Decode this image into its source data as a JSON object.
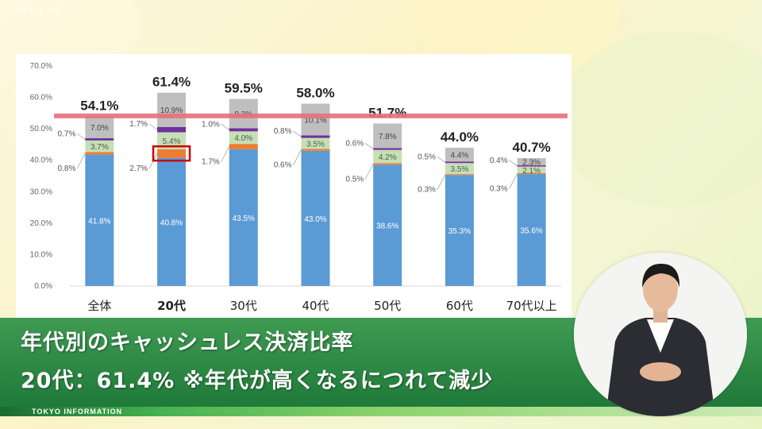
{
  "watermark": "TOKYO MX",
  "chart_data": {
    "type": "bar",
    "stacked": true,
    "categories": [
      "全体",
      "20代",
      "30代",
      "40代",
      "50代",
      "60代",
      "70代以上"
    ],
    "highlight_category": "20代",
    "ylim": [
      0,
      70
    ],
    "yticks": [
      "0.0%",
      "10.0%",
      "20.0%",
      "30.0%",
      "40.0%",
      "50.0%",
      "60.0%",
      "70.0%"
    ],
    "series": [
      {
        "color": "#5b9bd5",
        "values": [
          41.8,
          40.8,
          43.5,
          43.0,
          38.6,
          35.3,
          35.6
        ],
        "labels": [
          "41.8%",
          "40.8%",
          "43.5%",
          "43.0%",
          "38.6%",
          "35.3%",
          "35.6%"
        ]
      },
      {
        "color": "#ed7d31",
        "values": [
          0.8,
          2.7,
          1.7,
          0.6,
          0.5,
          0.3,
          0.3
        ],
        "labels": [
          "0.8%",
          "2.7%",
          "1.7%",
          "0.6%",
          "0.5%",
          "0.3%",
          "0.3%"
        ]
      },
      {
        "color": "#c5e0b4",
        "values": [
          3.7,
          5.4,
          4.0,
          3.5,
          4.2,
          3.5,
          2.1
        ],
        "labels": [
          "3.7%",
          "5.4%",
          "4.0%",
          "3.5%",
          "4.2%",
          "3.5%",
          "2.1%"
        ]
      },
      {
        "color": "#7030a0",
        "values": [
          0.7,
          1.7,
          1.0,
          0.8,
          0.6,
          0.5,
          0.4
        ],
        "labels": [
          "0.7%",
          "1.7%",
          "1.0%",
          "0.8%",
          "0.6%",
          "0.5%",
          "0.4%"
        ]
      },
      {
        "color": "#bfbfbf",
        "values": [
          7.0,
          10.9,
          9.3,
          10.1,
          7.8,
          4.4,
          2.3
        ],
        "labels": [
          "7.0%",
          "10.9%",
          "9.3%",
          "10.1%",
          "7.8%",
          "4.4%",
          "2.3%"
        ]
      }
    ],
    "totals": [
      "54.1%",
      "61.4%",
      "59.5%",
      "58.0%",
      "51.7%",
      "44.0%",
      "40.7%"
    ],
    "reference_line": 54.1,
    "reference_line_color": "#e8707a",
    "highlight_color": "#cc0000"
  },
  "caption": {
    "line1": "年代別のキャッシュレス決済比率",
    "line2": "20代：61.4% ※年代が高くなるにつれて減少"
  },
  "footer": "TOKYO INFORMATION"
}
